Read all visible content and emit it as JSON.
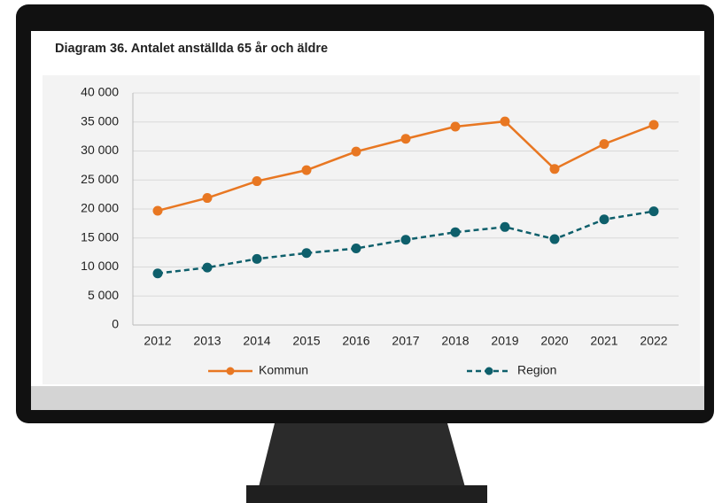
{
  "chart_data": {
    "type": "line",
    "title": "Diagram 36. Antalet anställda 65 år och äldre",
    "categories": [
      "2012",
      "2013",
      "2014",
      "2015",
      "2016",
      "2017",
      "2018",
      "2019",
      "2020",
      "2021",
      "2022"
    ],
    "series": [
      {
        "name": "Kommun",
        "color": "#e87722",
        "linestyle": "solid",
        "values": [
          19700,
          21900,
          24800,
          26700,
          29900,
          32100,
          34200,
          35100,
          26900,
          31200,
          34500
        ]
      },
      {
        "name": "Region",
        "color": "#0e5f6b",
        "linestyle": "dashed",
        "values": [
          8900,
          9900,
          11400,
          12400,
          13200,
          14700,
          16000,
          16900,
          14800,
          18200,
          19600
        ]
      }
    ],
    "ylim": [
      0,
      40000
    ],
    "yticks": [
      0,
      {
        "value": 5000,
        "label": "5 000"
      },
      {
        "value": 10000,
        "label": "10 000"
      },
      {
        "value": 15000,
        "label": "15 000"
      },
      {
        "value": 20000,
        "label": "20 000"
      },
      {
        "value": 25000,
        "label": "25 000"
      },
      {
        "value": 30000,
        "label": "30 000"
      },
      {
        "value": 35000,
        "label": "35 000"
      },
      {
        "value": 40000,
        "label": "40 000"
      }
    ],
    "grid": true,
    "legend": "bottom"
  }
}
